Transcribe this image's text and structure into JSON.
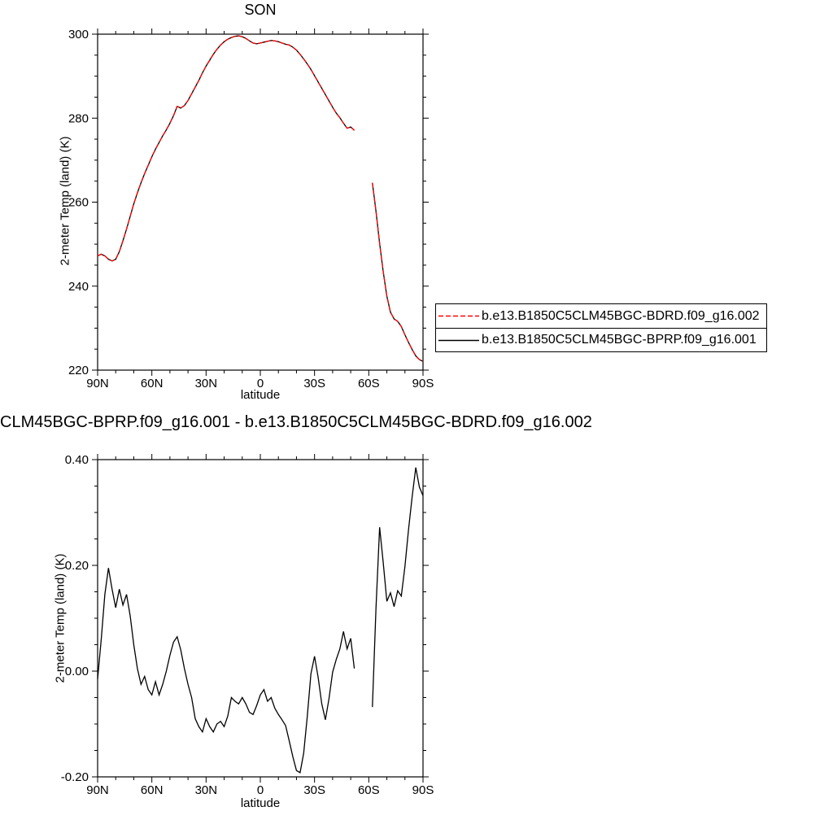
{
  "figure": {
    "background": "#ffffff",
    "line_black": "#000000",
    "line_red": "#ff0000"
  },
  "chart_data": [
    {
      "name": "zonal-mean-2m-temp",
      "type": "line",
      "title": "SON",
      "xlabel": "latitude",
      "ylabel": "2-meter Temp (land) (K)",
      "xlim": [
        90,
        -90
      ],
      "ylim": [
        220,
        300
      ],
      "grid": false,
      "xticks": [
        {
          "v": 90,
          "label": "90N"
        },
        {
          "v": 60,
          "label": "60N"
        },
        {
          "v": 30,
          "label": "30N"
        },
        {
          "v": 0,
          "label": "0"
        },
        {
          "v": -30,
          "label": "30S"
        },
        {
          "v": -60,
          "label": "60S"
        },
        {
          "v": -90,
          "label": "90S"
        }
      ],
      "xminor_step": 10,
      "yticks": [
        {
          "v": 220,
          "label": "220"
        },
        {
          "v": 240,
          "label": "240"
        },
        {
          "v": 260,
          "label": "260"
        },
        {
          "v": 280,
          "label": "280"
        },
        {
          "v": 300,
          "label": "300"
        }
      ],
      "yminor_step": 5,
      "legend": {
        "position": "outside-right-bottom",
        "entries": [
          {
            "label": "b.e13.B1850C5CLM45BGC-BDRD.f09_g16.002",
            "color": "#ff0000",
            "style": "dashed",
            "dash": "6 3"
          },
          {
            "label": "b.e13.B1850C5CLM45BGC-BPRP.f09_g16.001",
            "color": "#000000",
            "style": "solid"
          }
        ]
      },
      "series": [
        {
          "name": "b.e13.B1850C5CLM45BGC-BPRP.f09_g16.001",
          "color": "#000000",
          "style": "solid",
          "x": [
            90,
            88,
            86,
            84,
            82,
            80,
            78,
            76,
            74,
            72,
            70,
            68,
            66,
            64,
            62,
            60,
            58,
            56,
            54,
            52,
            50,
            48,
            46,
            44,
            42,
            40,
            38,
            36,
            34,
            32,
            30,
            28,
            26,
            24,
            22,
            20,
            18,
            16,
            14,
            12,
            10,
            8,
            6,
            4,
            2,
            0,
            -2,
            -4,
            -6,
            -8,
            -10,
            -12,
            -14,
            -16,
            -18,
            -20,
            -22,
            -24,
            -26,
            -28,
            -30,
            -32,
            -34,
            -36,
            -38,
            -40,
            -42,
            -44,
            -46,
            -48,
            -50,
            -52,
            -54,
            -56,
            -58,
            -60,
            -62,
            -64,
            -66,
            -68,
            -70,
            -72,
            -74,
            -76,
            -78,
            -80,
            -82,
            -84,
            -86,
            -88,
            -90
          ],
          "y": [
            247.2,
            247.6,
            247.2,
            246.4,
            246,
            246.4,
            248.2,
            250.8,
            253.6,
            256.6,
            259.6,
            262.2,
            264.6,
            266.8,
            268.8,
            270.8,
            272.6,
            274.2,
            275.8,
            277.2,
            278.8,
            280.6,
            282.8,
            282.4,
            283,
            284.2,
            285.8,
            287.4,
            289,
            290.8,
            292.4,
            293.8,
            295.2,
            296.4,
            297.4,
            298.2,
            298.8,
            299.2,
            299.5,
            299.6,
            299.4,
            299,
            298.4,
            297.9,
            297.7,
            297.9,
            298.1,
            298.3,
            298.5,
            298.4,
            298.2,
            297.9,
            297.6,
            297.4,
            296.9,
            296.2,
            295.2,
            294.1,
            292.9,
            291.6,
            290.1,
            288.6,
            287.1,
            285.6,
            284.1,
            282.6,
            281.2,
            280.1,
            278.8,
            277.6,
            277.9,
            277.1,
            null,
            null,
            null,
            null,
            264.6,
            257.8,
            250.2,
            243.4,
            237.6,
            233.8,
            232.2,
            231.6,
            230.4,
            228.4,
            226.6,
            224.9,
            223.4,
            222.5,
            222.1
          ]
        },
        {
          "name": "b.e13.B1850C5CLM45BGC-BDRD.f09_g16.002",
          "color": "#ff0000",
          "style": "dashed",
          "x": [
            90,
            88,
            86,
            84,
            82,
            80,
            78,
            76,
            74,
            72,
            70,
            68,
            66,
            64,
            62,
            60,
            58,
            56,
            54,
            52,
            50,
            48,
            46,
            44,
            42,
            40,
            38,
            36,
            34,
            32,
            30,
            28,
            26,
            24,
            22,
            20,
            18,
            16,
            14,
            12,
            10,
            8,
            6,
            4,
            2,
            0,
            -2,
            -4,
            -6,
            -8,
            -10,
            -12,
            -14,
            -16,
            -18,
            -20,
            -22,
            -24,
            -26,
            -28,
            -30,
            -32,
            -34,
            -36,
            -38,
            -40,
            -42,
            -44,
            -46,
            -48,
            -50,
            -52,
            -54,
            -56,
            -58,
            -60,
            -62,
            -64,
            -66,
            -68,
            -70,
            -72,
            -74,
            -76,
            -78,
            -80,
            -82,
            -84,
            -86,
            -88,
            -90
          ],
          "y": [
            247.2,
            247.6,
            247.2,
            246.4,
            246,
            246.4,
            248.2,
            250.8,
            253.6,
            256.6,
            259.6,
            262.2,
            264.6,
            266.8,
            268.8,
            270.8,
            272.6,
            274.2,
            275.8,
            277.2,
            278.8,
            280.6,
            282.8,
            282.4,
            283,
            284.2,
            285.8,
            287.4,
            289,
            290.8,
            292.4,
            293.8,
            295.2,
            296.4,
            297.4,
            298.2,
            298.8,
            299.2,
            299.5,
            299.6,
            299.4,
            299,
            298.4,
            297.9,
            297.7,
            297.9,
            298.1,
            298.3,
            298.5,
            298.4,
            298.2,
            297.9,
            297.6,
            297.4,
            296.9,
            296.2,
            295.2,
            294.1,
            292.9,
            291.6,
            290.1,
            288.6,
            287.1,
            285.6,
            284.1,
            282.6,
            281.2,
            280.1,
            278.8,
            277.6,
            277.9,
            277.1,
            null,
            null,
            null,
            null,
            264.6,
            257.8,
            250.2,
            243.4,
            237.6,
            233.8,
            232.2,
            231.6,
            230.4,
            228.4,
            226.6,
            224.9,
            223.4,
            222.5,
            222.1
          ]
        }
      ]
    },
    {
      "name": "difference",
      "type": "line",
      "title": "CLM45BGC-BPRP.f09_g16.001 - b.e13.B1850C5CLM45BGC-BDRD.f09_g16.002",
      "xlabel": "latitude",
      "ylabel": "2-meter Temp (land) (K)",
      "xlim": [
        90,
        -90
      ],
      "ylim": [
        -0.2,
        0.4
      ],
      "grid": false,
      "xticks": [
        {
          "v": 90,
          "label": "90N"
        },
        {
          "v": 60,
          "label": "60N"
        },
        {
          "v": 30,
          "label": "30N"
        },
        {
          "v": 0,
          "label": "0"
        },
        {
          "v": -30,
          "label": "30S"
        },
        {
          "v": -60,
          "label": "60S"
        },
        {
          "v": -90,
          "label": "90S"
        }
      ],
      "xminor_step": 10,
      "yticks": [
        {
          "v": -0.2,
          "label": "-0.20"
        },
        {
          "v": 0,
          "label": "0.00"
        },
        {
          "v": 0.2,
          "label": "0.20"
        },
        {
          "v": 0.4,
          "label": "0.40"
        }
      ],
      "yminor_step": 0.05,
      "series": [
        {
          "name": "BPRP-minus-BDRD",
          "color": "#000000",
          "style": "solid",
          "x": [
            90,
            88,
            86,
            84,
            82,
            80,
            78,
            76,
            74,
            72,
            70,
            68,
            66,
            64,
            62,
            60,
            58,
            56,
            54,
            52,
            50,
            48,
            46,
            44,
            42,
            40,
            38,
            36,
            34,
            32,
            30,
            28,
            26,
            24,
            22,
            20,
            18,
            16,
            14,
            12,
            10,
            8,
            6,
            4,
            2,
            0,
            -2,
            -4,
            -6,
            -8,
            -10,
            -12,
            -14,
            -16,
            -18,
            -20,
            -22,
            -24,
            -26,
            -28,
            -30,
            -32,
            -34,
            -36,
            -38,
            -40,
            -42,
            -44,
            -46,
            -48,
            -50,
            -52,
            -54,
            -56,
            -58,
            -60,
            -62,
            -64,
            -66,
            -68,
            -70,
            -72,
            -74,
            -76,
            -78,
            -80,
            -82,
            -84,
            -86,
            -88,
            -90
          ],
          "y": [
            -0.015,
            0.06,
            0.145,
            0.195,
            0.155,
            0.12,
            0.155,
            0.125,
            0.145,
            0.105,
            0.05,
            0.005,
            -0.025,
            -0.01,
            -0.035,
            -0.045,
            -0.02,
            -0.045,
            -0.025,
            0,
            0.03,
            0.055,
            0.065,
            0.04,
            0.005,
            -0.025,
            -0.05,
            -0.09,
            -0.105,
            -0.115,
            -0.09,
            -0.105,
            -0.115,
            -0.1,
            -0.095,
            -0.105,
            -0.085,
            -0.05,
            -0.057,
            -0.062,
            -0.05,
            -0.062,
            -0.078,
            -0.082,
            -0.065,
            -0.045,
            -0.035,
            -0.057,
            -0.05,
            -0.07,
            -0.082,
            -0.092,
            -0.103,
            -0.132,
            -0.162,
            -0.188,
            -0.192,
            -0.155,
            -0.085,
            -0.005,
            0.028,
            -0.012,
            -0.062,
            -0.092,
            -0.052,
            -0.002,
            0.022,
            0.042,
            0.075,
            0.042,
            0.062,
            0.005,
            null,
            null,
            null,
            null,
            -0.068,
            0.12,
            0.272,
            0.205,
            0.132,
            0.148,
            0.122,
            0.152,
            0.142,
            0.198,
            0.268,
            0.33,
            0.385,
            0.348,
            0.332
          ]
        }
      ]
    }
  ]
}
